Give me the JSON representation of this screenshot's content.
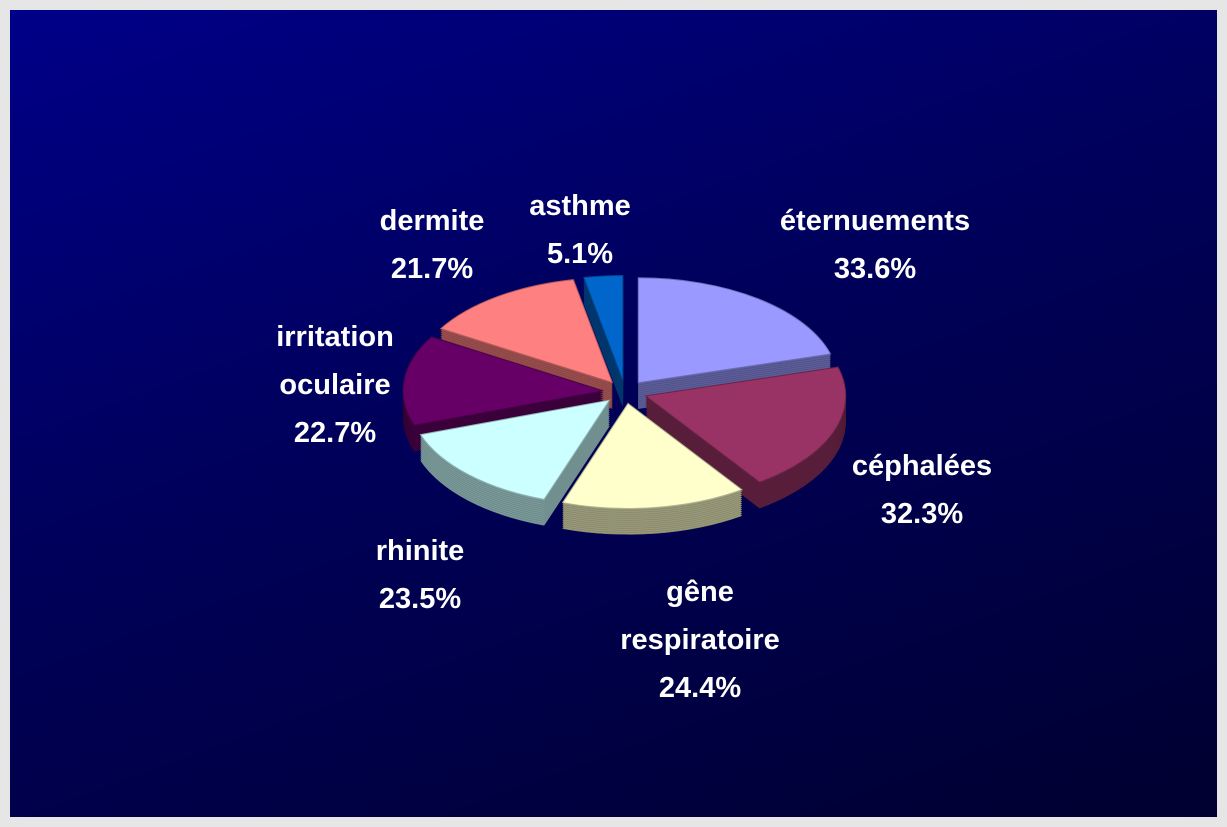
{
  "chart_data": {
    "type": "pie",
    "categories": [
      "éternuements",
      "céphalées",
      "gêne respiratoire",
      "rhinite",
      "irritation oculaire",
      "dermite",
      "asthme"
    ],
    "values": [
      33.6,
      32.3,
      24.4,
      23.5,
      22.7,
      21.7,
      5.1
    ],
    "value_labels": [
      "33.6%",
      "32.3%",
      "24.4%",
      "23.5%",
      "22.7%",
      "21.7%",
      "5.1%"
    ],
    "colors": [
      "#9999ff",
      "#993366",
      "#ffffcc",
      "#ccffff",
      "#660066",
      "#ff8080",
      "#0066cc"
    ]
  }
}
